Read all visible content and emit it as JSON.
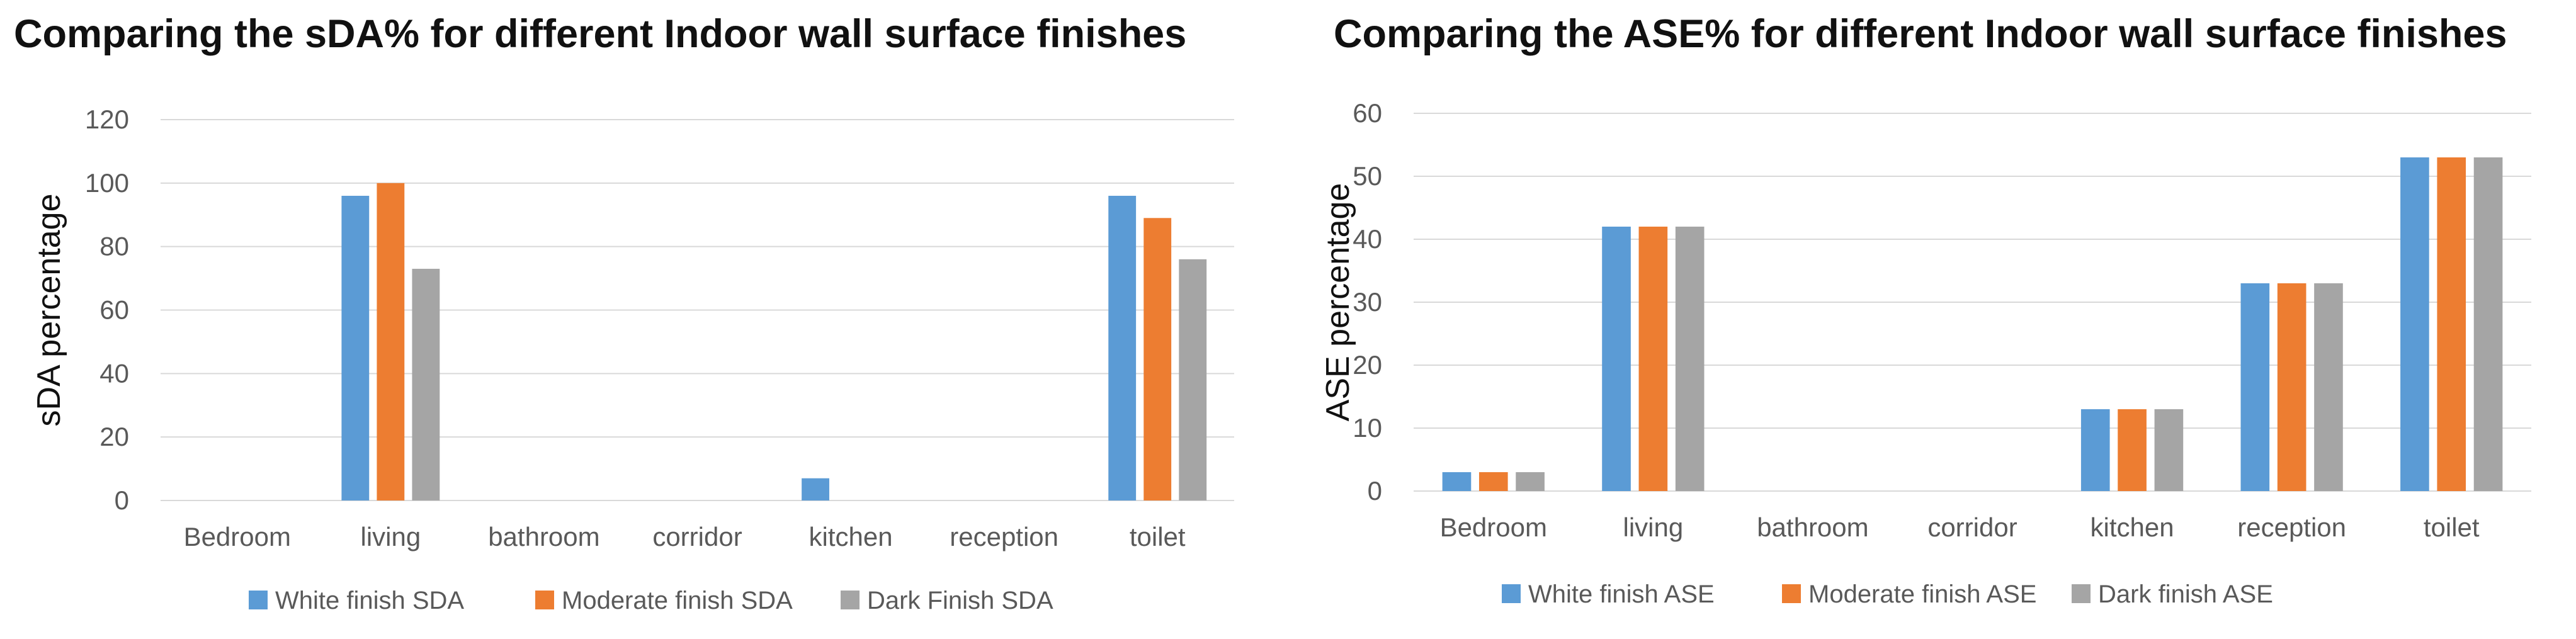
{
  "colors": {
    "white_finish": "#5b9bd5",
    "moderate_finish": "#ed7d31",
    "dark_finish": "#a5a5a5",
    "grid": "#d9d9d9"
  },
  "chart_data": [
    {
      "type": "bar",
      "title": "Comparing the sDA% for different Indoor wall surface finishes",
      "xlabel": "",
      "ylabel": "sDA percentage",
      "ylim": [
        0,
        120
      ],
      "yticks": [
        0,
        20,
        40,
        60,
        80,
        100,
        120
      ],
      "grid": true,
      "legend_position": "bottom",
      "categories": [
        "Bedroom",
        "living",
        "bathroom",
        "corridor",
        "kitchen",
        "reception",
        "toilet"
      ],
      "series": [
        {
          "name": "White finish SDA",
          "color": "#5b9bd5",
          "values": [
            0,
            96,
            0,
            0,
            7,
            0,
            96
          ]
        },
        {
          "name": "Moderate finish SDA",
          "color": "#ed7d31",
          "values": [
            0,
            100,
            0,
            0,
            0,
            0,
            89
          ]
        },
        {
          "name": "Dark Finish SDA",
          "color": "#a5a5a5",
          "values": [
            0,
            73,
            0,
            0,
            0,
            0,
            76
          ]
        }
      ]
    },
    {
      "type": "bar",
      "title": "Comparing the ASE% for different Indoor wall surface finishes",
      "xlabel": "",
      "ylabel": "ASE percentage",
      "ylim": [
        0,
        60
      ],
      "yticks": [
        0,
        10,
        20,
        30,
        40,
        50,
        60
      ],
      "grid": true,
      "legend_position": "bottom",
      "categories": [
        "Bedroom",
        "living",
        "bathroom",
        "corridor",
        "kitchen",
        "reception",
        "toilet"
      ],
      "series": [
        {
          "name": "White finish ASE",
          "color": "#5b9bd5",
          "values": [
            3,
            42,
            0,
            0,
            13,
            33,
            53
          ]
        },
        {
          "name": "Moderate finish ASE",
          "color": "#ed7d31",
          "values": [
            3,
            42,
            0,
            0,
            13,
            33,
            53
          ]
        },
        {
          "name": "Dark finish ASE",
          "color": "#a5a5a5",
          "values": [
            3,
            42,
            0,
            0,
            13,
            33,
            53
          ]
        }
      ]
    }
  ]
}
